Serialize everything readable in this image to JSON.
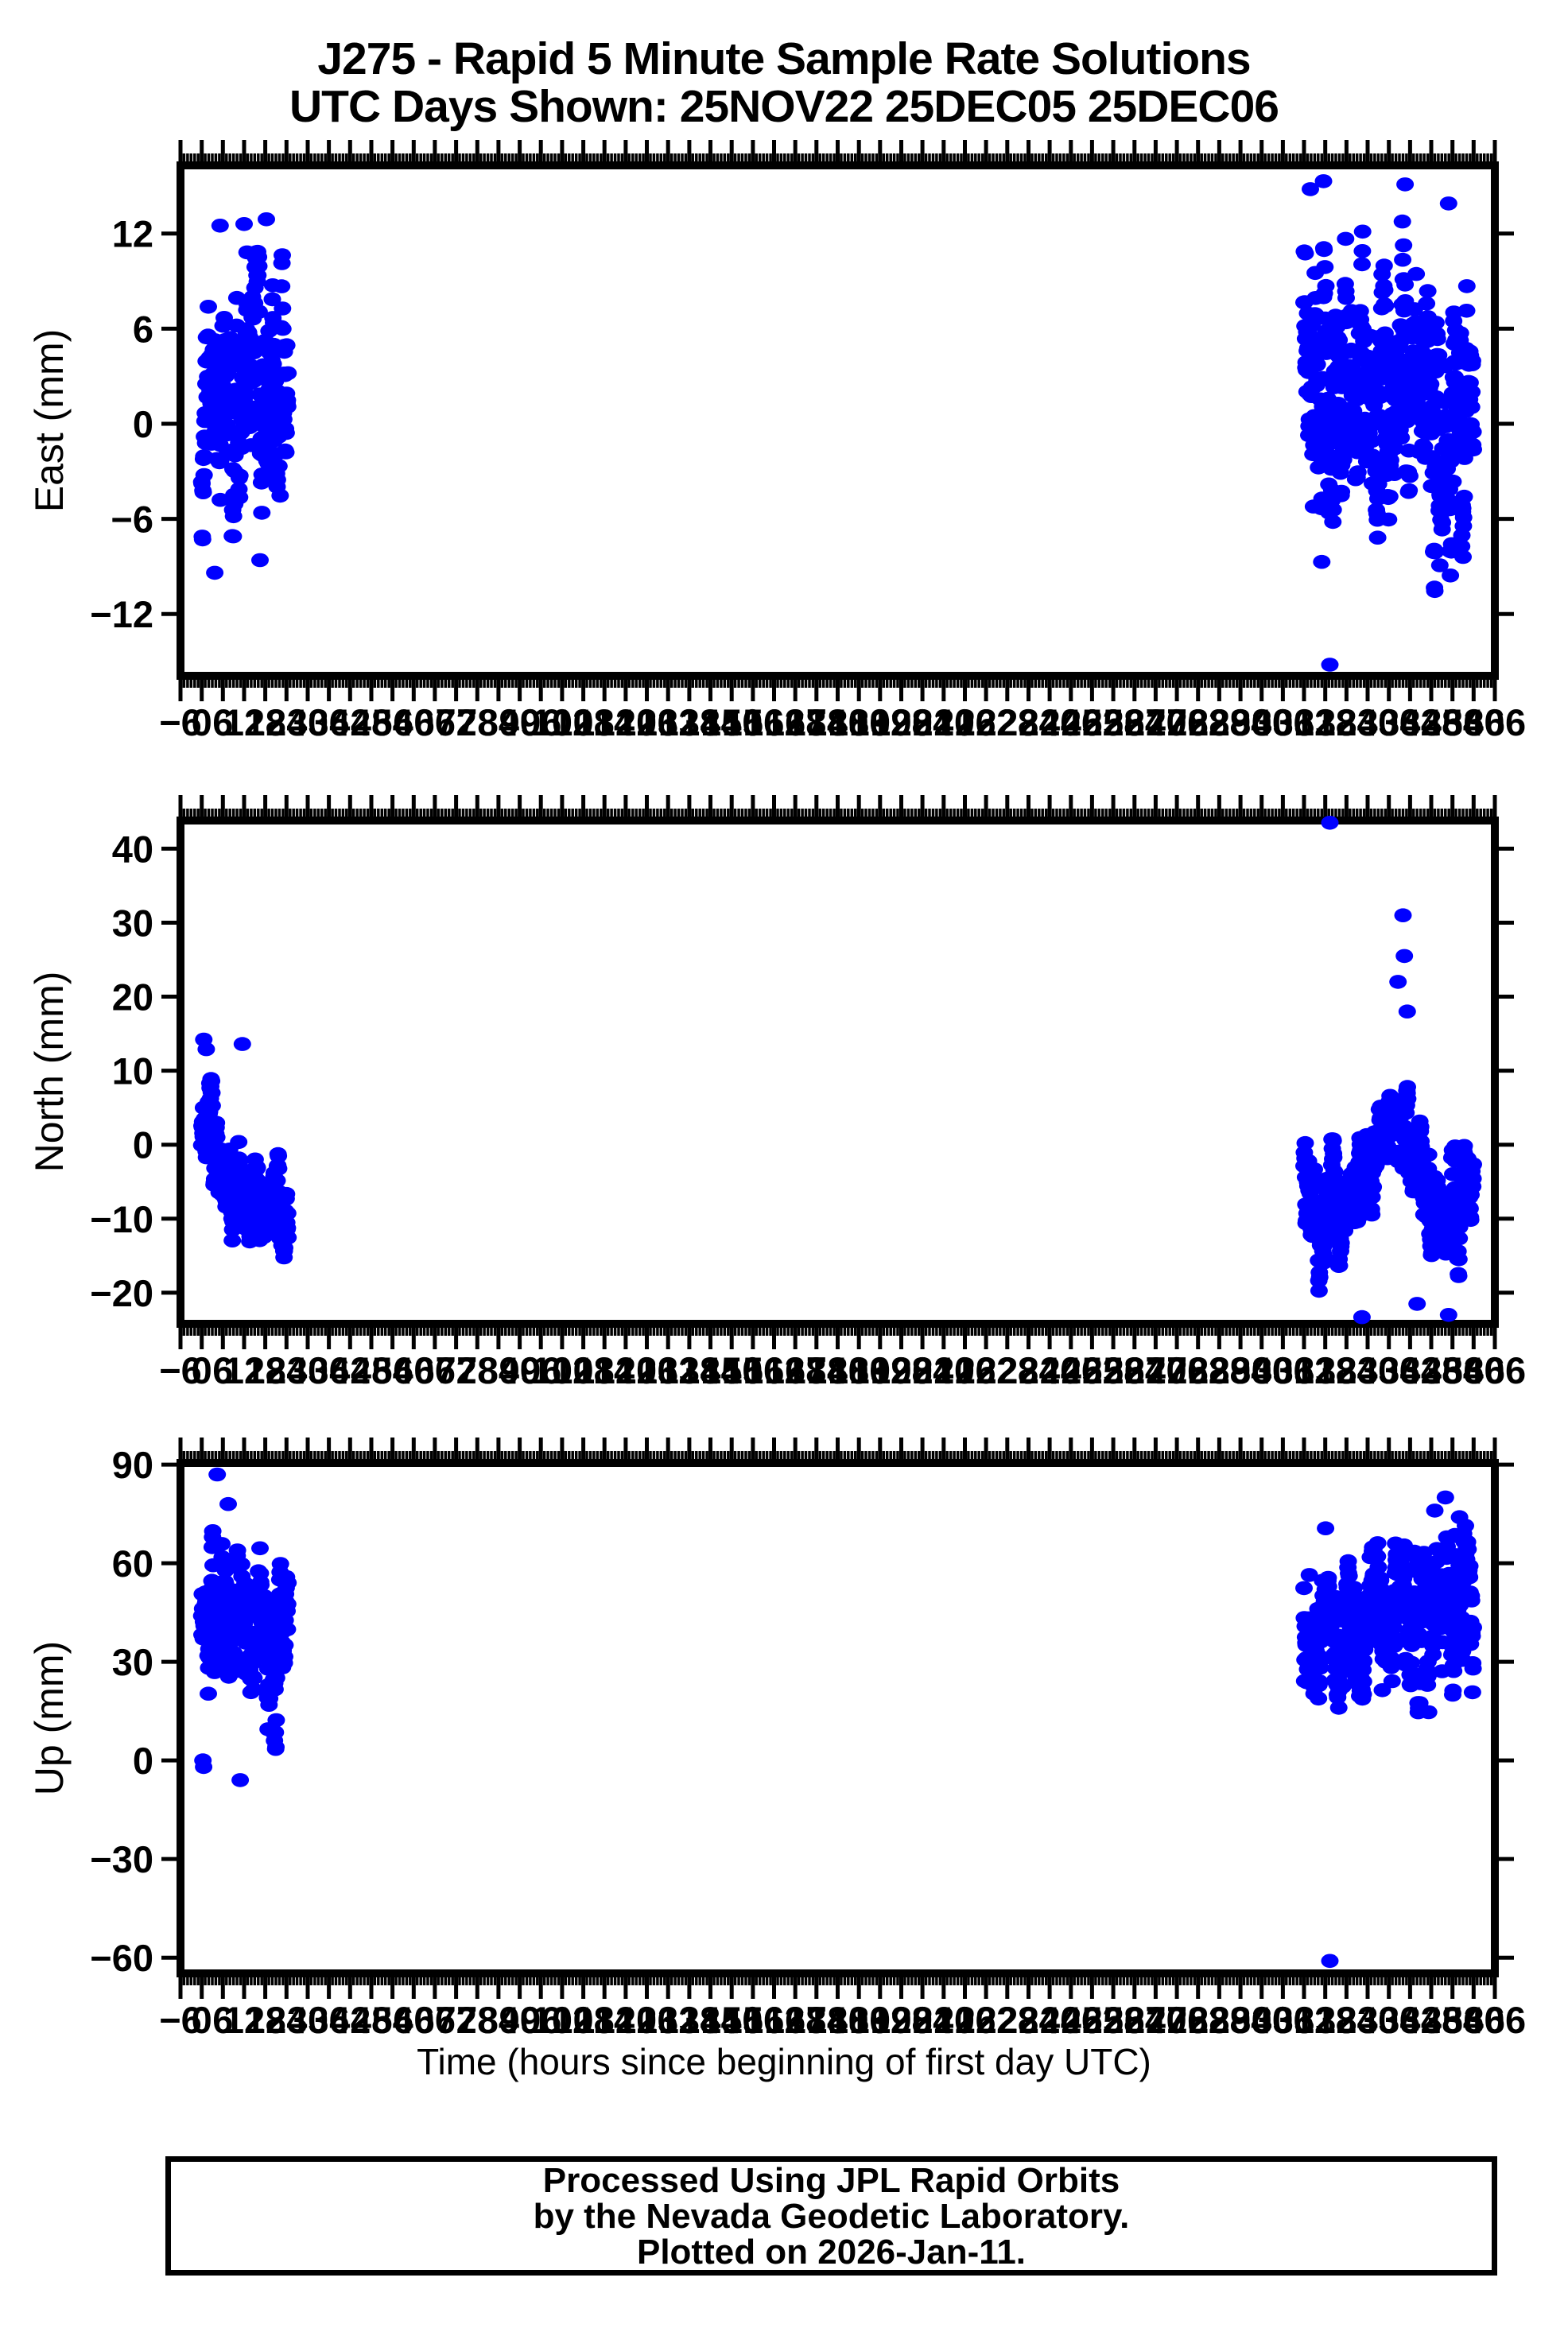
{
  "title": {
    "line1": "J275 - Rapid 5 Minute Sample Rate Solutions",
    "line2": "UTC Days Shown:  25NOV22 25DEC05 25DEC06"
  },
  "station": "J275",
  "utc_days_shown": [
    "25NOV22",
    "25DEC05",
    "25DEC06"
  ],
  "chart_data": {
    "type": "scatter",
    "point_color": "#0000ff",
    "frame_color": "#000000",
    "grid": "off",
    "legend": "none",
    "x": {
      "label": "Time (hours since beginning of first day UTC)",
      "min": -6,
      "max": 366,
      "annot_step": 6,
      "minor_step": 1,
      "day_hour_ranges": [
        [
          0,
          24
        ],
        [
          312,
          336
        ],
        [
          336,
          360
        ]
      ],
      "sample_interval_hours": 0.0833
    },
    "panels": [
      {
        "id": "east",
        "ylabel": "East (mm)",
        "ymin": -15.9,
        "ymax": 16.3,
        "yticks": [
          12,
          6,
          0,
          -6,
          -12
        ],
        "clusters": [
          {
            "seed": 11,
            "x0": 0,
            "x1": 24.5,
            "n": 288,
            "std": 3.3,
            "ar": 0.8,
            "clamp": [
              -9.6,
              11.0
            ],
            "mean": [
              [
                0,
                1.0
              ],
              [
                3,
                3.0
              ],
              [
                6,
                1.5
              ],
              [
                9,
                -0.5
              ],
              [
                12,
                1.0
              ],
              [
                15,
                2.5
              ],
              [
                18,
                0.0
              ],
              [
                21,
                1.0
              ],
              [
                24.5,
                1.5
              ]
            ]
          },
          {
            "seed": 12,
            "x0": 312,
            "x1": 360,
            "n": 576,
            "std": 3.9,
            "ar": 0.8,
            "clamp": [
              -11.3,
              13.0
            ],
            "mean": [
              [
                312,
                1.0
              ],
              [
                316,
                2.5
              ],
              [
                320,
                1.0
              ],
              [
                324,
                3.0
              ],
              [
                328,
                1.5
              ],
              [
                332,
                3.5
              ],
              [
                336,
                2.0
              ],
              [
                340,
                3.0
              ],
              [
                344,
                0.0
              ],
              [
                348,
                1.5
              ],
              [
                352,
                -1.5
              ],
              [
                356,
                1.5
              ],
              [
                360,
                2.0
              ]
            ]
          }
        ],
        "outliers": [
          [
            5.2,
            12.5
          ],
          [
            12.0,
            12.6
          ],
          [
            18.3,
            12.9
          ],
          [
            3.7,
            -9.4
          ],
          [
            16.5,
            -8.6
          ],
          [
            313.8,
            14.8
          ],
          [
            317.5,
            15.3
          ],
          [
            340.6,
            15.1
          ],
          [
            352.9,
            13.9
          ],
          [
            319.3,
            -15.2
          ]
        ]
      },
      {
        "id": "north",
        "ylabel": "North (mm)",
        "ymin": -24.2,
        "ymax": 43.8,
        "yticks": [
          40,
          30,
          20,
          10,
          0,
          -10,
          -20
        ],
        "clusters": [
          {
            "seed": 21,
            "x0": 0,
            "x1": 24.5,
            "n": 288,
            "std": 3.0,
            "ar": 0.8,
            "clamp": [
              -22.3,
              12.0
            ],
            "mean": [
              [
                0,
                5.0
              ],
              [
                1.5,
                3.0
              ],
              [
                3,
                0.0
              ],
              [
                5,
                -3.0
              ],
              [
                7,
                -6.0
              ],
              [
                9,
                -7.5
              ],
              [
                11,
                -6.5
              ],
              [
                13,
                -8.0
              ],
              [
                15,
                -8.5
              ],
              [
                17,
                -7.5
              ],
              [
                19,
                -8.5
              ],
              [
                21,
                -7.0
              ],
              [
                23,
                -8.0
              ],
              [
                24.5,
                -9.0
              ]
            ]
          },
          {
            "seed": 22,
            "x0": 312,
            "x1": 360,
            "n": 576,
            "std": 3.2,
            "ar": 0.8,
            "clamp": [
              -22.5,
              20.0
            ],
            "mean": [
              [
                312,
                -4
              ],
              [
                314,
                -7
              ],
              [
                316,
                -9
              ],
              [
                318,
                -10
              ],
              [
                320,
                -9
              ],
              [
                322,
                -8
              ],
              [
                324,
                -9.5
              ],
              [
                326,
                -8
              ],
              [
                328,
                -6
              ],
              [
                330,
                -4
              ],
              [
                332,
                -2
              ],
              [
                334,
                1
              ],
              [
                336,
                4
              ],
              [
                337.5,
                6
              ],
              [
                339,
                3
              ],
              [
                341,
                0
              ],
              [
                343,
                -3
              ],
              [
                345,
                -6
              ],
              [
                347,
                -8
              ],
              [
                349,
                -9
              ],
              [
                351,
                -10
              ],
              [
                353,
                -8
              ],
              [
                355,
                -9.5
              ],
              [
                357,
                -7
              ],
              [
                358.5,
                -4
              ],
              [
                360,
                -3
              ]
            ]
          }
        ],
        "outliers": [
          [
            0.6,
            14.2
          ],
          [
            1.3,
            12.9
          ],
          [
            11.5,
            13.6
          ],
          [
            319.3,
            43.5
          ],
          [
            340.0,
            31.0
          ],
          [
            340.4,
            25.5
          ],
          [
            338.6,
            22.0
          ],
          [
            341.2,
            18.0
          ],
          [
            328.4,
            -23.3
          ],
          [
            352.9,
            -23.0
          ],
          [
            344.0,
            -21.5
          ]
        ]
      },
      {
        "id": "up",
        "ylabel": "Up (mm)",
        "ymin": -64.8,
        "ymax": 90.5,
        "yticks": [
          90,
          60,
          30,
          0,
          -30,
          -60
        ],
        "clusters": [
          {
            "seed": 31,
            "x0": 0,
            "x1": 24.5,
            "n": 288,
            "std": 10,
            "ar": 0.8,
            "clamp": [
              3,
              70
            ],
            "mean": [
              [
                0,
                36
              ],
              [
                2,
                44
              ],
              [
                4,
                52
              ],
              [
                6,
                48
              ],
              [
                8,
                40
              ],
              [
                10,
                42
              ],
              [
                12,
                38
              ],
              [
                14,
                34
              ],
              [
                16,
                40
              ],
              [
                18,
                36
              ],
              [
                20,
                34
              ],
              [
                22,
                36
              ],
              [
                24.5,
                38
              ]
            ]
          },
          {
            "seed": 32,
            "x0": 312,
            "x1": 360,
            "n": 576,
            "std": 11,
            "ar": 0.8,
            "clamp": [
              4,
              72
            ],
            "mean": [
              [
                312,
                42
              ],
              [
                315,
                38
              ],
              [
                318,
                44
              ],
              [
                321,
                40
              ],
              [
                324,
                42
              ],
              [
                327,
                38
              ],
              [
                330,
                40
              ],
              [
                333,
                44
              ],
              [
                336,
                42
              ],
              [
                339,
                46
              ],
              [
                342,
                48
              ],
              [
                345,
                44
              ],
              [
                348,
                46
              ],
              [
                351,
                42
              ],
              [
                354,
                38
              ],
              [
                357,
                42
              ],
              [
                360,
                40
              ]
            ]
          }
        ],
        "outliers": [
          [
            4.4,
            87
          ],
          [
            7.5,
            78
          ],
          [
            0.35,
            0
          ],
          [
            0.55,
            -2
          ],
          [
            20.3,
            8.5
          ],
          [
            20.6,
            6
          ],
          [
            10.9,
            -6
          ],
          [
            319.3,
            -61
          ],
          [
            352,
            80
          ],
          [
            349,
            76
          ],
          [
            356,
            74
          ]
        ]
      }
    ]
  },
  "footer": {
    "line1": "Processed Using JPL Rapid Orbits",
    "line2": "by the Nevada Geodetic Laboratory.",
    "line3": "Plotted on 2026-Jan-11."
  }
}
